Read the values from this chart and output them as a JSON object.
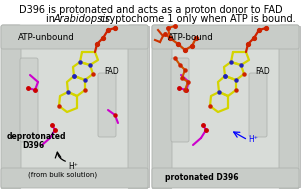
{
  "title_line1": "D396 is protonated and acts as a proton donor to FAD",
  "title_line2_pre": "in ",
  "title_line2_italic": "Arabidopsis",
  "title_line2_post": " cryptochome 1 only when ATP is bound.",
  "left_label": "ATP-unbound",
  "right_label": "ATP-bound",
  "left_fad": "FAD",
  "right_fad": "FAD",
  "left_dep1": "deprotonated",
  "left_dep2": "D396",
  "right_pro": "protonated D396",
  "left_h": "H⁺",
  "right_h": "H⁺",
  "left_bulk": "(from bulk solution)",
  "bg_color": "#ffffff",
  "protein_bg": "#d8dcd8",
  "helix_color": "#c8ccc8",
  "helix_edge": "#b0b4b0",
  "title_fontsize": 7.0,
  "label_fontsize": 6.2,
  "small_fontsize": 5.5,
  "tiny_fontsize": 5.0,
  "fig_width": 3.02,
  "fig_height": 1.89
}
